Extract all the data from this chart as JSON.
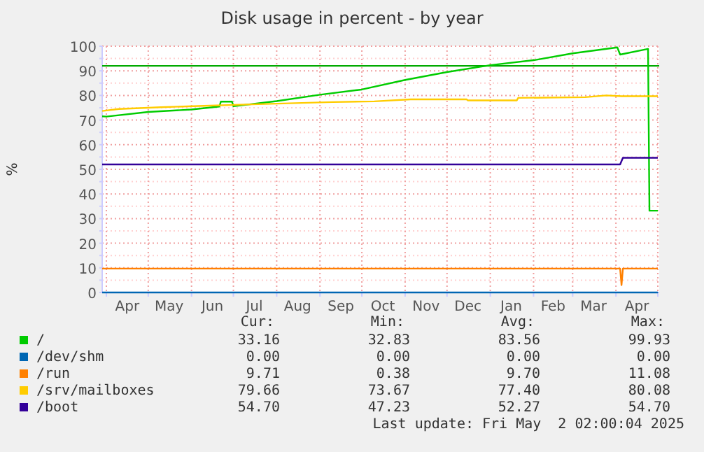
{
  "chart_data": {
    "type": "line",
    "title": "Disk usage in percent - by year",
    "ylabel": "%",
    "xlim": [
      "2024-03-29",
      "2025-05-02"
    ],
    "xticks": [
      {
        "value": "2024-04-01",
        "label": null
      },
      {
        "value": "2024-04-16",
        "label": "Apr"
      },
      {
        "value": "2024-05-01",
        "label": null
      },
      {
        "value": "2024-05-16",
        "label": "May"
      },
      {
        "value": "2024-06-01",
        "label": null
      },
      {
        "value": "2024-06-16",
        "label": "Jun"
      },
      {
        "value": "2024-07-01",
        "label": null
      },
      {
        "value": "2024-07-16",
        "label": "Jul"
      },
      {
        "value": "2024-08-01",
        "label": null
      },
      {
        "value": "2024-08-16",
        "label": "Aug"
      },
      {
        "value": "2024-09-01",
        "label": null
      },
      {
        "value": "2024-09-16",
        "label": "Sep"
      },
      {
        "value": "2024-10-01",
        "label": null
      },
      {
        "value": "2024-10-16",
        "label": "Oct"
      },
      {
        "value": "2024-11-01",
        "label": null
      },
      {
        "value": "2024-11-16",
        "label": "Nov"
      },
      {
        "value": "2024-12-01",
        "label": null
      },
      {
        "value": "2024-12-16",
        "label": "Dec"
      },
      {
        "value": "2025-01-01",
        "label": null
      },
      {
        "value": "2025-01-16",
        "label": "Jan"
      },
      {
        "value": "2025-02-01",
        "label": null
      },
      {
        "value": "2025-02-15",
        "label": "Feb"
      },
      {
        "value": "2025-03-01",
        "label": null
      },
      {
        "value": "2025-03-16",
        "label": "Mar"
      },
      {
        "value": "2025-04-01",
        "label": null
      },
      {
        "value": "2025-04-16",
        "label": "Apr"
      },
      {
        "value": "2025-05-01",
        "label": null
      }
    ],
    "ylim": [
      0,
      100
    ],
    "yticks": [
      0,
      {
        "value": 5,
        "label": null
      },
      10,
      {
        "value": 15,
        "label": null
      },
      20,
      {
        "value": 25,
        "label": null
      },
      30,
      {
        "value": 35,
        "label": null
      },
      40,
      {
        "value": 45,
        "label": null
      },
      50,
      {
        "value": 55,
        "label": null
      },
      60,
      {
        "value": 65,
        "label": null
      },
      70,
      {
        "value": 75,
        "label": null
      },
      80,
      {
        "value": 85,
        "label": null
      },
      90,
      {
        "value": 95,
        "label": null
      },
      100
    ],
    "grid": true,
    "legend": "bottom",
    "ref_lines": [
      {
        "axis": "y",
        "value": 92,
        "color": "#00aa00"
      }
    ],
    "series": [
      {
        "name": "/",
        "color": "#00cc00",
        "x": [
          "2024-03-29",
          "2024-04-01",
          "2024-05-01",
          "2024-06-01",
          "2024-06-21",
          "2024-06-22",
          "2024-06-30",
          "2024-07-01",
          "2024-08-01",
          "2024-09-01",
          "2024-10-01",
          "2024-11-01",
          "2024-12-01",
          "2025-01-01",
          "2025-02-01",
          "2025-03-01",
          "2025-04-02",
          "2025-04-04",
          "2025-04-24",
          "2025-04-25",
          "2025-05-01"
        ],
        "values": [
          71.5,
          71.4,
          73.3,
          74.3,
          75.5,
          77.5,
          77.5,
          75.6,
          77.7,
          80.3,
          82.4,
          86.3,
          89.5,
          92.3,
          94.3,
          97.1,
          99.5,
          96.6,
          98.9,
          33.2,
          33.2
        ]
      },
      {
        "name": "/dev/shm",
        "color": "#0066b3",
        "x": [
          "2024-03-29",
          "2025-05-01"
        ],
        "values": [
          0,
          0
        ]
      },
      {
        "name": "/run",
        "color": "#ff8000",
        "x": [
          "2024-03-29",
          "2025-04-04",
          "2025-04-05",
          "2025-04-06",
          "2025-05-01"
        ],
        "values": [
          9.7,
          9.7,
          3,
          9.7,
          9.7
        ]
      },
      {
        "name": "/srv/mailboxes",
        "color": "#ffcc00",
        "x": [
          "2024-03-29",
          "2024-04-10",
          "2024-05-10",
          "2024-06-10",
          "2024-07-10",
          "2024-08-10",
          "2024-09-10",
          "2024-10-10",
          "2024-11-05",
          "2024-12-15",
          "2024-12-16",
          "2025-01-20",
          "2025-01-21",
          "2025-03-10",
          "2025-03-25",
          "2025-04-05",
          "2025-05-01"
        ],
        "values": [
          73.7,
          74.5,
          75.2,
          75.8,
          76.3,
          76.8,
          77.3,
          77.6,
          78.4,
          78.4,
          78.0,
          78.0,
          79.0,
          79.3,
          80.0,
          79.7,
          79.7
        ]
      },
      {
        "name": "/boot",
        "color": "#330099",
        "x": [
          "2024-03-29",
          "2025-04-04",
          "2025-04-06",
          "2025-05-01"
        ],
        "values": [
          52,
          52,
          54.7,
          54.7
        ]
      }
    ],
    "annotations": [
      "Cur:",
      "Min:",
      "Avg:",
      "Max:",
      "33.16",
      "32.83",
      "83.56",
      "99.93",
      "0.00",
      "0.00",
      "0.00",
      "0.00",
      "9.71",
      "0.38",
      "9.70",
      "11.08",
      "79.66",
      "73.67",
      "77.40",
      "80.08",
      "54.70",
      "47.23",
      "52.27",
      "54.70",
      "Last update: Fri May  2 02:00:04 2025"
    ]
  }
}
